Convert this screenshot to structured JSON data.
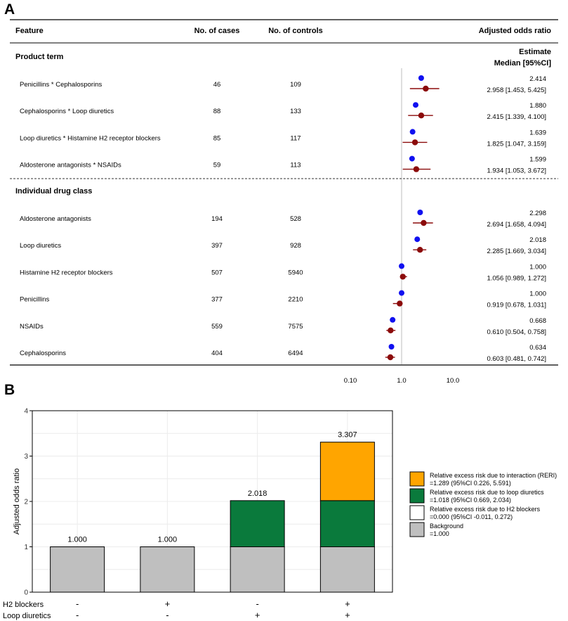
{
  "chart_data": [
    {
      "type": "forest",
      "panel_label": "A",
      "columns": {
        "feature": "Feature",
        "cases": "No. of cases",
        "controls": "No. of controls",
        "aor": "Adjusted odds ratio"
      },
      "estimate_header": [
        "Estimate",
        "Median [95%CI]"
      ],
      "sections": [
        {
          "title": "Product term",
          "rows": [
            {
              "label": "Penicillins * Cephalosporins",
              "cases": "46",
              "controls": "109",
              "estimate": 2.414,
              "estimate_text": "2.414",
              "median": 2.958,
              "ci_low": 1.453,
              "ci_high": 5.425,
              "median_text": "2.958 [1.453, 5.425]"
            },
            {
              "label": "Cephalosporins * Loop diuretics",
              "cases": "88",
              "controls": "133",
              "estimate": 1.88,
              "estimate_text": "1.880",
              "median": 2.415,
              "ci_low": 1.339,
              "ci_high": 4.1,
              "median_text": "2.415 [1.339, 4.100]"
            },
            {
              "label": "Loop diuretics * Histamine H2 receptor blockers",
              "cases": "85",
              "controls": "117",
              "estimate": 1.639,
              "estimate_text": "1.639",
              "median": 1.825,
              "ci_low": 1.047,
              "ci_high": 3.159,
              "median_text": "1.825 [1.047, 3.159]"
            },
            {
              "label": "Aldosterone antagonists * NSAIDs",
              "cases": "59",
              "controls": "113",
              "estimate": 1.599,
              "estimate_text": "1.599",
              "median": 1.934,
              "ci_low": 1.053,
              "ci_high": 3.672,
              "median_text": "1.934 [1.053, 3.672]"
            }
          ]
        },
        {
          "title": "Individual drug class",
          "rows": [
            {
              "label": "Aldosterone antagonists",
              "cases": "194",
              "controls": "528",
              "estimate": 2.298,
              "estimate_text": "2.298",
              "median": 2.694,
              "ci_low": 1.658,
              "ci_high": 4.094,
              "median_text": "2.694 [1.658, 4.094]"
            },
            {
              "label": "Loop diuretics",
              "cases": "397",
              "controls": "928",
              "estimate": 2.018,
              "estimate_text": "2.018",
              "median": 2.285,
              "ci_low": 1.669,
              "ci_high": 3.034,
              "median_text": "2.285 [1.669, 3.034]"
            },
            {
              "label": "Histamine H2 receptor blockers",
              "cases": "507",
              "controls": "5940",
              "estimate": 1.0,
              "estimate_text": "1.000",
              "median": 1.056,
              "ci_low": 0.989,
              "ci_high": 1.272,
              "median_text": "1.056 [0.989, 1.272]"
            },
            {
              "label": "Penicillins",
              "cases": "377",
              "controls": "2210",
              "estimate": 1.0,
              "estimate_text": "1.000",
              "median": 0.919,
              "ci_low": 0.678,
              "ci_high": 1.031,
              "median_text": "0.919 [0.678, 1.031]"
            },
            {
              "label": "NSAIDs",
              "cases": "559",
              "controls": "7575",
              "estimate": 0.668,
              "estimate_text": "0.668",
              "median": 0.61,
              "ci_low": 0.504,
              "ci_high": 0.758,
              "median_text": "0.610 [0.504, 0.758]"
            },
            {
              "label": "Cephalosporins",
              "cases": "404",
              "controls": "6494",
              "estimate": 0.634,
              "estimate_text": "0.634",
              "median": 0.603,
              "ci_low": 0.481,
              "ci_high": 0.742,
              "median_text": "0.603 [0.481, 0.742]"
            }
          ]
        }
      ],
      "x_axis": {
        "scale": "log10",
        "range": [
          0.1,
          10
        ],
        "ticks": [
          0.1,
          1,
          10
        ],
        "tick_labels": [
          "0.10",
          "1.0",
          "10.0"
        ],
        "label": "Adjusted odds ratio",
        "reference": 1.0
      },
      "colors": {
        "estimate": "#1010f0",
        "median": "#8b0a0a"
      }
    },
    {
      "type": "bar",
      "stacked": true,
      "panel_label": "B",
      "ylabel": "Adjusted odds ratio",
      "ylim": [
        0,
        4
      ],
      "yticks": [
        0,
        1,
        2,
        3,
        4
      ],
      "totals": [
        1.0,
        1.0,
        2.018,
        3.307
      ],
      "total_labels": [
        "1.000",
        "1.000",
        "2.018",
        "3.307"
      ],
      "categories": [
        {
          "h2": "-",
          "loop": "-"
        },
        {
          "h2": "+",
          "loop": "-"
        },
        {
          "h2": "-",
          "loop": "+"
        },
        {
          "h2": "+",
          "loop": "+"
        }
      ],
      "row_labels": {
        "h2": "H2 blockers",
        "loop": "Loop diuretics"
      },
      "series": [
        {
          "name": "Background",
          "color": "#bfbfbf",
          "values": [
            1.0,
            1.0,
            1.0,
            1.0
          ]
        },
        {
          "name": "Relative excess risk due to H2 blockers",
          "color": "#ffffff",
          "values": [
            0,
            0,
            0,
            0
          ]
        },
        {
          "name": "Relative excess risk due to loop diuretics",
          "color": "#0a7a3c",
          "values": [
            0,
            0,
            1.018,
            1.018
          ]
        },
        {
          "name": "Relative excess risk due to interaction (RERI)",
          "color": "#ffa500",
          "values": [
            0,
            0,
            0,
            1.289
          ]
        }
      ],
      "legend": [
        {
          "lines": [
            "Relative excess risk due to interaction (RERI)",
            "=1.289 (95%CI 0.226, 5.591)"
          ],
          "color": "#ffa500"
        },
        {
          "lines": [
            "Relative excess risk due to loop diuretics",
            "=1.018 (95%CI 0.669, 2.034)"
          ],
          "color": "#0a7a3c"
        },
        {
          "lines": [
            "Relative excess risk due to H2 blockers",
            "=0.000 (95%CI -0.011, 0.272)"
          ],
          "color": "#ffffff"
        },
        {
          "lines": [
            "Background",
            "=1.000"
          ],
          "color": "#bfbfbf"
        }
      ]
    }
  ]
}
